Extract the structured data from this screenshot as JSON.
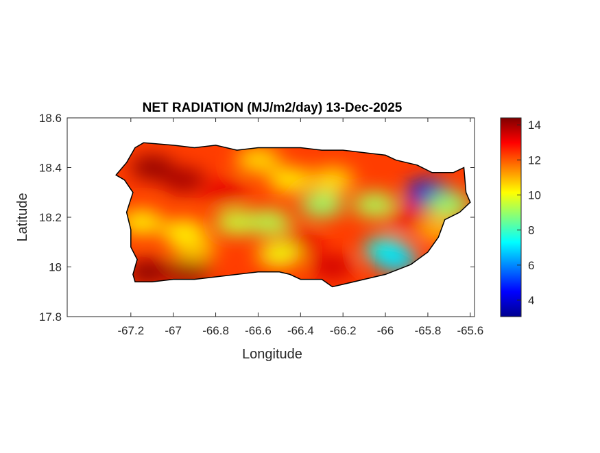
{
  "chart_data": {
    "type": "heatmap",
    "title": "NET RADIATION (MJ/m2/day) 13-Dec-2025",
    "xlabel": "Longitude",
    "ylabel": "Latitude",
    "xlim": [
      -67.5,
      -65.58
    ],
    "ylim": [
      17.8,
      18.6
    ],
    "xticks": [
      "-67.2",
      "-67",
      "-66.8",
      "-66.6",
      "-66.4",
      "-66.2",
      "-66",
      "-65.8",
      "-65.6"
    ],
    "xtick_values": [
      -67.2,
      -67,
      -66.8,
      -66.6,
      -66.4,
      -66.2,
      -66,
      -65.8,
      -65.6
    ],
    "yticks": [
      "18.6",
      "18.4",
      "18.2",
      "18",
      "17.8"
    ],
    "ytick_values": [
      18.6,
      18.4,
      18.2,
      18,
      17.8
    ],
    "colorbar": {
      "colormap": "jet",
      "clim": [
        3.06,
        14.4
      ],
      "ticks": [
        "4",
        "6",
        "8",
        "10",
        "12",
        "14"
      ],
      "tick_values": [
        4,
        6,
        8,
        10,
        12,
        14
      ]
    },
    "grid": false,
    "outline": [
      [
        -67.27,
        18.37
      ],
      [
        -67.22,
        18.42
      ],
      [
        -67.18,
        18.48
      ],
      [
        -67.14,
        18.5
      ],
      [
        -67.0,
        18.49
      ],
      [
        -66.9,
        18.48
      ],
      [
        -66.8,
        18.49
      ],
      [
        -66.7,
        18.47
      ],
      [
        -66.6,
        18.48
      ],
      [
        -66.5,
        18.48
      ],
      [
        -66.4,
        18.48
      ],
      [
        -66.3,
        18.47
      ],
      [
        -66.2,
        18.47
      ],
      [
        -66.1,
        18.46
      ],
      [
        -66.0,
        18.45
      ],
      [
        -65.95,
        18.43
      ],
      [
        -65.85,
        18.41
      ],
      [
        -65.78,
        18.38
      ],
      [
        -65.68,
        18.38
      ],
      [
        -65.63,
        18.4
      ],
      [
        -65.62,
        18.3
      ],
      [
        -65.6,
        18.26
      ],
      [
        -65.65,
        18.22
      ],
      [
        -65.72,
        18.19
      ],
      [
        -65.75,
        18.12
      ],
      [
        -65.8,
        18.06
      ],
      [
        -65.88,
        18.01
      ],
      [
        -66.0,
        17.97
      ],
      [
        -66.1,
        17.95
      ],
      [
        -66.2,
        17.93
      ],
      [
        -66.25,
        17.92
      ],
      [
        -66.3,
        17.95
      ],
      [
        -66.4,
        17.95
      ],
      [
        -66.45,
        17.97
      ],
      [
        -66.5,
        17.98
      ],
      [
        -66.6,
        17.98
      ],
      [
        -66.7,
        17.97
      ],
      [
        -66.8,
        17.96
      ],
      [
        -66.9,
        17.95
      ],
      [
        -67.0,
        17.95
      ],
      [
        -67.1,
        17.94
      ],
      [
        -67.18,
        17.94
      ],
      [
        -67.19,
        17.97
      ],
      [
        -67.17,
        18.03
      ],
      [
        -67.2,
        18.08
      ],
      [
        -67.2,
        18.15
      ],
      [
        -67.22,
        18.22
      ],
      [
        -67.19,
        18.3
      ],
      [
        -67.23,
        18.35
      ]
    ],
    "field_base_value": 12.3,
    "field_samples": [
      {
        "lon": -67.1,
        "lat": 18.4,
        "value": 14.2
      },
      {
        "lon": -66.95,
        "lat": 18.35,
        "value": 14.0
      },
      {
        "lon": -67.12,
        "lat": 17.98,
        "value": 14.3
      },
      {
        "lon": -66.93,
        "lat": 17.98,
        "value": 14.2
      },
      {
        "lon": -66.75,
        "lat": 18.3,
        "value": 13.3
      },
      {
        "lon": -67.15,
        "lat": 18.18,
        "value": 10.3
      },
      {
        "lon": -66.95,
        "lat": 18.14,
        "value": 10.2
      },
      {
        "lon": -66.7,
        "lat": 18.18,
        "value": 9.5
      },
      {
        "lon": -66.55,
        "lat": 18.18,
        "value": 9.3
      },
      {
        "lon": -66.6,
        "lat": 18.43,
        "value": 10.5
      },
      {
        "lon": -66.45,
        "lat": 18.35,
        "value": 10.3
      },
      {
        "lon": -66.3,
        "lat": 18.25,
        "value": 9.0
      },
      {
        "lon": -66.25,
        "lat": 18.35,
        "value": 10.5
      },
      {
        "lon": -66.05,
        "lat": 18.25,
        "value": 9.2
      },
      {
        "lon": -66.0,
        "lat": 18.07,
        "value": 7.5
      },
      {
        "lon": -65.95,
        "lat": 18.03,
        "value": 7.0
      },
      {
        "lon": -65.8,
        "lat": 18.3,
        "value": 5.0
      },
      {
        "lon": -65.77,
        "lat": 18.28,
        "value": 3.6
      },
      {
        "lon": -65.7,
        "lat": 18.25,
        "value": 9.0
      },
      {
        "lon": -66.4,
        "lat": 18.1,
        "value": 13.3
      },
      {
        "lon": -66.25,
        "lat": 18.0,
        "value": 13.5
      },
      {
        "lon": -66.9,
        "lat": 18.07,
        "value": 10.8
      },
      {
        "lon": -66.5,
        "lat": 18.05,
        "value": 10.0
      },
      {
        "lon": -65.9,
        "lat": 18.2,
        "value": 13.2
      },
      {
        "lon": -65.75,
        "lat": 18.15,
        "value": 11.0
      }
    ]
  }
}
